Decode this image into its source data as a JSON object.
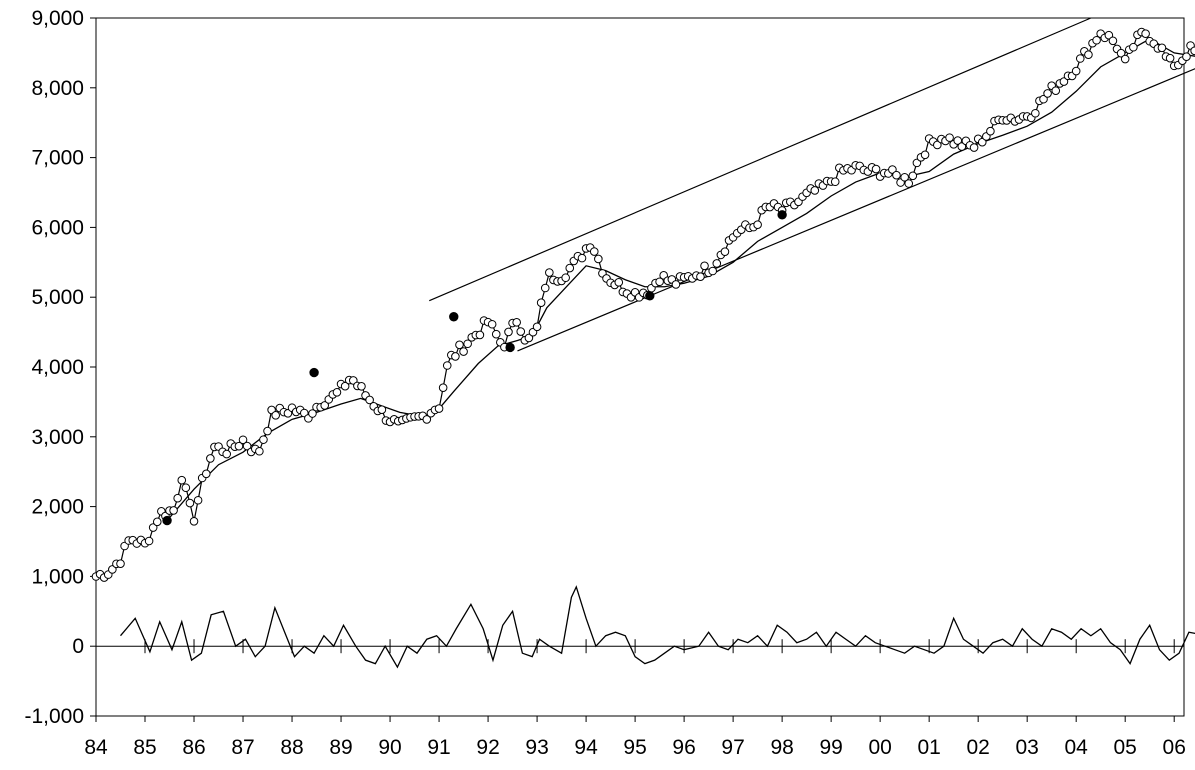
{
  "chart_data": {
    "type": "line",
    "title": "",
    "xlabel": "",
    "ylabel": "",
    "ylim": [
      -1000,
      9000
    ],
    "yticks": [
      -1000,
      0,
      1000,
      2000,
      3000,
      4000,
      5000,
      6000,
      7000,
      8000,
      9000
    ],
    "ytick_labels": [
      "-1,000",
      "0",
      "1,000",
      "2,000",
      "3,000",
      "4,000",
      "5,000",
      "6,000",
      "7,000",
      "8,000",
      "9,000"
    ],
    "xlim": [
      1984,
      2006.2
    ],
    "xticks": [
      1984,
      1985,
      1986,
      1987,
      1988,
      1989,
      1990,
      1991,
      1992,
      1993,
      1994,
      1995,
      1996,
      1997,
      1998,
      1999,
      2000,
      2001,
      2002,
      2003,
      2004,
      2005,
      2006
    ],
    "xtick_labels": [
      "84",
      "85",
      "86",
      "87",
      "88",
      "89",
      "90",
      "91",
      "92",
      "93",
      "94",
      "95",
      "96",
      "97",
      "98",
      "99",
      "00",
      "01",
      "02",
      "03",
      "04",
      "05",
      "06"
    ],
    "grid": false,
    "legend": "none",
    "colors": {
      "line": "#000000",
      "marker_fill": "#ffffff",
      "highlight_fill": "#000000",
      "background": "#ffffff"
    },
    "price_anchors": [
      [
        1984.0,
        1000
      ],
      [
        1984.3,
        1080
      ],
      [
        1984.5,
        1250
      ],
      [
        1984.7,
        1550
      ],
      [
        1985.0,
        1450
      ],
      [
        1985.3,
        1900
      ],
      [
        1985.6,
        1950
      ],
      [
        1985.75,
        2450
      ],
      [
        1985.9,
        2000
      ],
      [
        1986.0,
        1850
      ],
      [
        1986.15,
        2300
      ],
      [
        1986.4,
        2850
      ],
      [
        1986.7,
        2800
      ],
      [
        1987.0,
        2950
      ],
      [
        1987.3,
        2750
      ],
      [
        1987.6,
        3350
      ],
      [
        1987.8,
        3350
      ],
      [
        1988.0,
        3400
      ],
      [
        1988.3,
        3300
      ],
      [
        1988.6,
        3500
      ],
      [
        1988.9,
        3600
      ],
      [
        1989.2,
        3850
      ],
      [
        1989.5,
        3600
      ],
      [
        1989.9,
        3300
      ],
      [
        1990.2,
        3150
      ],
      [
        1990.5,
        3250
      ],
      [
        1990.7,
        3300
      ],
      [
        1991.0,
        3450
      ],
      [
        1991.2,
        4100
      ],
      [
        1991.5,
        4300
      ],
      [
        1991.8,
        4500
      ],
      [
        1992.0,
        4650
      ],
      [
        1992.3,
        4300
      ],
      [
        1992.6,
        4700
      ],
      [
        1992.8,
        4350
      ],
      [
        1993.0,
        4550
      ],
      [
        1993.2,
        5300
      ],
      [
        1993.5,
        5300
      ],
      [
        1993.8,
        5500
      ],
      [
        1994.1,
        5800
      ],
      [
        1994.4,
        5300
      ],
      [
        1994.7,
        5150
      ],
      [
        1995.0,
        5050
      ],
      [
        1995.3,
        5100
      ],
      [
        1995.5,
        5300
      ],
      [
        1995.8,
        5200
      ],
      [
        1996.0,
        5250
      ],
      [
        1996.3,
        5350
      ],
      [
        1996.6,
        5450
      ],
      [
        1996.8,
        5700
      ],
      [
        1997.1,
        5950
      ],
      [
        1997.4,
        6000
      ],
      [
        1997.7,
        6300
      ],
      [
        1998.0,
        6250
      ],
      [
        1998.3,
        6350
      ],
      [
        1998.6,
        6500
      ],
      [
        1998.9,
        6600
      ],
      [
        1999.2,
        6800
      ],
      [
        1999.5,
        6850
      ],
      [
        1999.8,
        6800
      ],
      [
        2000.1,
        6800
      ],
      [
        2000.4,
        6700
      ],
      [
        2000.6,
        6680
      ],
      [
        2000.8,
        7000
      ],
      [
        2001.0,
        7200
      ],
      [
        2001.3,
        7300
      ],
      [
        2001.6,
        7200
      ],
      [
        2001.9,
        7150
      ],
      [
        2002.2,
        7350
      ],
      [
        2002.5,
        7600
      ],
      [
        2002.8,
        7550
      ],
      [
        2003.1,
        7650
      ],
      [
        2003.4,
        7900
      ],
      [
        2003.7,
        8100
      ],
      [
        2004.0,
        8300
      ],
      [
        2004.3,
        8600
      ],
      [
        2004.5,
        8800
      ],
      [
        2004.8,
        8650
      ],
      [
        2005.0,
        8350
      ],
      [
        2005.2,
        8650
      ],
      [
        2005.4,
        8800
      ],
      [
        2005.7,
        8600
      ],
      [
        2005.9,
        8350
      ],
      [
        2006.1,
        8350
      ],
      [
        2006.3,
        8550
      ],
      [
        2006.45,
        8500
      ]
    ],
    "moving_average": [
      [
        1985.45,
        1800
      ],
      [
        1986.0,
        2250
      ],
      [
        1986.5,
        2600
      ],
      [
        1987.0,
        2780
      ],
      [
        1987.5,
        3050
      ],
      [
        1988.0,
        3250
      ],
      [
        1988.5,
        3350
      ],
      [
        1989.0,
        3470
      ],
      [
        1989.4,
        3550
      ],
      [
        1989.8,
        3450
      ],
      [
        1990.2,
        3350
      ],
      [
        1990.6,
        3300
      ],
      [
        1990.9,
        3320
      ],
      [
        1991.3,
        3650
      ],
      [
        1991.8,
        4050
      ],
      [
        1992.2,
        4300
      ],
      [
        1992.6,
        4380
      ],
      [
        1992.9,
        4450
      ],
      [
        1993.2,
        4850
      ],
      [
        1993.6,
        5150
      ],
      [
        1994.0,
        5450
      ],
      [
        1994.4,
        5380
      ],
      [
        1994.8,
        5250
      ],
      [
        1995.2,
        5150
      ],
      [
        1995.6,
        5150
      ],
      [
        1996.0,
        5200
      ],
      [
        1996.5,
        5300
      ],
      [
        1997.0,
        5500
      ],
      [
        1997.5,
        5800
      ],
      [
        1998.0,
        6000
      ],
      [
        1998.5,
        6200
      ],
      [
        1999.0,
        6450
      ],
      [
        1999.5,
        6650
      ],
      [
        2000.0,
        6780
      ],
      [
        2000.5,
        6720
      ],
      [
        2001.0,
        6800
      ],
      [
        2001.5,
        7050
      ],
      [
        2002.0,
        7200
      ],
      [
        2002.5,
        7320
      ],
      [
        2003.0,
        7450
      ],
      [
        2003.5,
        7650
      ],
      [
        2004.0,
        7950
      ],
      [
        2004.5,
        8300
      ],
      [
        2005.0,
        8500
      ],
      [
        2005.5,
        8700
      ],
      [
        2006.0,
        8500
      ],
      [
        2006.45,
        8450
      ]
    ],
    "highlighted_points": [
      [
        1985.45,
        1800
      ],
      [
        1988.45,
        3920
      ],
      [
        1991.3,
        4720
      ],
      [
        1992.45,
        4280
      ],
      [
        1995.3,
        5020
      ],
      [
        1998.0,
        6180
      ]
    ],
    "channel_lines": [
      {
        "from": [
          1990.8,
          4950
        ],
        "to": [
          2004.3,
          9000
        ]
      },
      {
        "from": [
          1992.6,
          4230
        ],
        "to": [
          2006.45,
          8280
        ]
      }
    ],
    "oscillator": [
      [
        1984.5,
        150
      ],
      [
        1984.8,
        400
      ],
      [
        1985.1,
        -80
      ],
      [
        1985.3,
        350
      ],
      [
        1985.55,
        -50
      ],
      [
        1985.75,
        350
      ],
      [
        1985.95,
        -200
      ],
      [
        1986.15,
        -100
      ],
      [
        1986.35,
        450
      ],
      [
        1986.6,
        500
      ],
      [
        1986.85,
        0
      ],
      [
        1987.05,
        100
      ],
      [
        1987.25,
        -150
      ],
      [
        1987.45,
        0
      ],
      [
        1987.65,
        550
      ],
      [
        1987.85,
        200
      ],
      [
        1988.05,
        -150
      ],
      [
        1988.25,
        0
      ],
      [
        1988.45,
        -100
      ],
      [
        1988.65,
        150
      ],
      [
        1988.85,
        0
      ],
      [
        1989.05,
        300
      ],
      [
        1989.3,
        0
      ],
      [
        1989.5,
        -200
      ],
      [
        1989.7,
        -250
      ],
      [
        1989.9,
        0
      ],
      [
        1990.15,
        -300
      ],
      [
        1990.35,
        0
      ],
      [
        1990.55,
        -100
      ],
      [
        1990.75,
        100
      ],
      [
        1990.95,
        150
      ],
      [
        1991.15,
        0
      ],
      [
        1991.35,
        250
      ],
      [
        1991.65,
        600
      ],
      [
        1991.9,
        250
      ],
      [
        1992.1,
        -200
      ],
      [
        1992.3,
        300
      ],
      [
        1992.5,
        500
      ],
      [
        1992.7,
        -100
      ],
      [
        1992.9,
        -150
      ],
      [
        1993.05,
        100
      ],
      [
        1993.25,
        0
      ],
      [
        1993.5,
        -100
      ],
      [
        1993.7,
        700
      ],
      [
        1993.8,
        850
      ],
      [
        1994.0,
        400
      ],
      [
        1994.2,
        0
      ],
      [
        1994.4,
        150
      ],
      [
        1994.6,
        200
      ],
      [
        1994.8,
        150
      ],
      [
        1995.0,
        -150
      ],
      [
        1995.2,
        -250
      ],
      [
        1995.4,
        -200
      ],
      [
        1995.6,
        -100
      ],
      [
        1995.8,
        0
      ],
      [
        1996.0,
        -50
      ],
      [
        1996.3,
        0
      ],
      [
        1996.5,
        200
      ],
      [
        1996.7,
        0
      ],
      [
        1996.9,
        -50
      ],
      [
        1997.1,
        100
      ],
      [
        1997.3,
        50
      ],
      [
        1997.5,
        150
      ],
      [
        1997.7,
        0
      ],
      [
        1997.9,
        300
      ],
      [
        1998.1,
        200
      ],
      [
        1998.3,
        50
      ],
      [
        1998.5,
        100
      ],
      [
        1998.7,
        200
      ],
      [
        1998.9,
        0
      ],
      [
        1999.1,
        200
      ],
      [
        1999.3,
        100
      ],
      [
        1999.5,
        0
      ],
      [
        1999.7,
        150
      ],
      [
        1999.9,
        50
      ],
      [
        2000.1,
        0
      ],
      [
        2000.3,
        -50
      ],
      [
        2000.5,
        -100
      ],
      [
        2000.7,
        0
      ],
      [
        2000.9,
        -50
      ],
      [
        2001.1,
        -100
      ],
      [
        2001.3,
        0
      ],
      [
        2001.5,
        400
      ],
      [
        2001.7,
        100
      ],
      [
        2001.9,
        0
      ],
      [
        2002.1,
        -100
      ],
      [
        2002.3,
        50
      ],
      [
        2002.5,
        100
      ],
      [
        2002.7,
        0
      ],
      [
        2002.9,
        250
      ],
      [
        2003.1,
        100
      ],
      [
        2003.3,
        0
      ],
      [
        2003.5,
        250
      ],
      [
        2003.7,
        200
      ],
      [
        2003.9,
        100
      ],
      [
        2004.1,
        250
      ],
      [
        2004.3,
        150
      ],
      [
        2004.5,
        250
      ],
      [
        2004.7,
        50
      ],
      [
        2004.9,
        -50
      ],
      [
        2005.1,
        -250
      ],
      [
        2005.3,
        100
      ],
      [
        2005.5,
        300
      ],
      [
        2005.7,
        -50
      ],
      [
        2005.9,
        -200
      ],
      [
        2006.1,
        -100
      ],
      [
        2006.3,
        200
      ],
      [
        2006.45,
        180
      ]
    ]
  }
}
